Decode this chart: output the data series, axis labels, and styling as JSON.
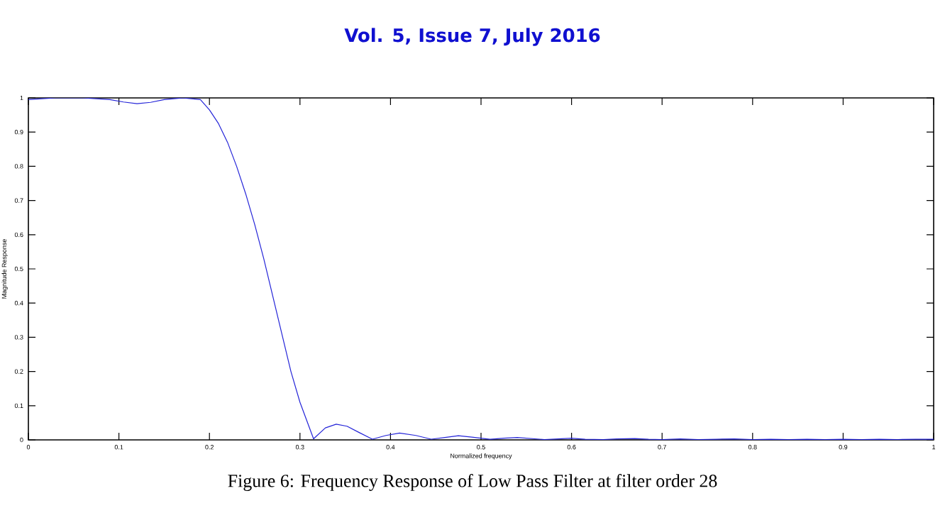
{
  "chart_data": {
    "type": "line",
    "xlabel": "Normalized frequency",
    "ylabel": "Magnitude Response",
    "annotations": [
      "Vol. 5, Issue 7, July 2016",
      "Figure 6: Frequency Response of Low Pass Filter at filter order 28"
    ],
    "x": [
      0,
      0.03,
      0.06,
      0.09,
      0.105,
      0.12,
      0.135,
      0.15,
      0.17,
      0.19,
      0.2,
      0.21,
      0.22,
      0.23,
      0.24,
      0.25,
      0.26,
      0.27,
      0.28,
      0.29,
      0.3,
      0.315,
      0.328,
      0.34,
      0.352,
      0.365,
      0.38,
      0.395,
      0.41,
      0.428,
      0.445,
      0.46,
      0.475,
      0.49,
      0.51,
      0.525,
      0.54,
      0.555,
      0.57,
      0.585,
      0.6,
      0.615,
      0.635,
      0.65,
      0.67,
      0.685,
      0.7,
      0.72,
      0.74,
      0.76,
      0.78,
      0.8,
      0.82,
      0.84,
      0.86,
      0.88,
      0.9,
      0.92,
      0.94,
      0.96,
      0.98,
      1
    ],
    "series": [
      {
        "color": "#2424d8",
        "values": [
          0.995,
          1.0,
          1.0,
          0.995,
          0.988,
          0.983,
          0.987,
          0.995,
          1.0,
          0.995,
          0.965,
          0.925,
          0.87,
          0.8,
          0.72,
          0.63,
          0.53,
          0.42,
          0.31,
          0.2,
          0.11,
          0.003,
          0.035,
          0.046,
          0.04,
          0.022,
          0.002,
          0.013,
          0.02,
          0.013,
          0.002,
          0.007,
          0.012,
          0.008,
          0.002,
          0.005,
          0.007,
          0.004,
          0.001,
          0.003,
          0.005,
          0.002,
          0.001,
          0.003,
          0.004,
          0.002,
          0.001,
          0.003,
          0.001,
          0.002,
          0.003,
          0.001,
          0.002,
          0.001,
          0.002,
          0.001,
          0.002,
          0.001,
          0.002,
          0.001,
          0.002,
          0.002
        ]
      }
    ],
    "xlim": [
      0,
      1
    ],
    "ylim": [
      0,
      1
    ],
    "xticks": [
      0,
      0.1,
      0.2,
      0.3,
      0.4,
      0.5,
      0.6,
      0.7,
      0.8,
      0.9,
      1
    ],
    "yticks": [
      0,
      0.1,
      0.2,
      0.3,
      0.4,
      0.5,
      0.6,
      0.7,
      0.8,
      0.9,
      1
    ],
    "grid": false,
    "marker": "none",
    "line_style": "solid"
  }
}
